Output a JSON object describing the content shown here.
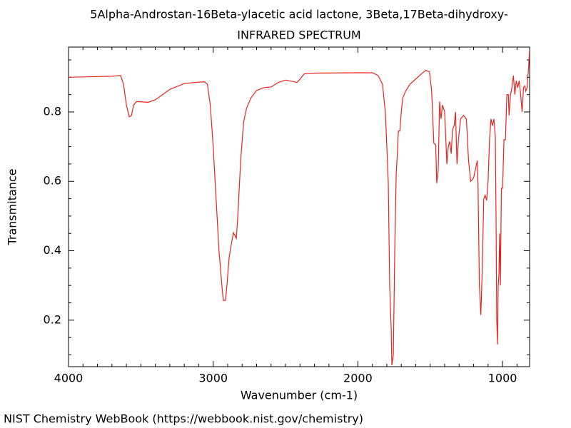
{
  "chart_data": {
    "type": "line",
    "title": "5Alpha-Androstan-16Beta-ylacetic acid lactone, 3Beta,17Beta-dihydroxy-",
    "subtitle": "INFRARED SPECTRUM",
    "x_label": "Wavenumber (cm-1)",
    "y_label": "Transmitance",
    "footer": "NIST Chemistry WebBook (https://webbook.nist.gov/chemistry)",
    "color": "#e8231f",
    "xlim": [
      4000,
      813
    ],
    "ylim": [
      0.066,
      0.987
    ],
    "xticks": [
      4000,
      3000,
      2000,
      1000
    ],
    "yticks": [
      0.2,
      0.4,
      0.6,
      0.8
    ],
    "xminor": [
      3900,
      3800,
      3700,
      3600,
      3500,
      3400,
      3300,
      3200,
      3100,
      2900,
      2800,
      2700,
      2600,
      2500,
      2400,
      2300,
      2200,
      2100,
      1900,
      1800,
      1700,
      1600,
      1500,
      1400,
      1300,
      1200,
      1100,
      900
    ],
    "yminor": [
      0.1,
      0.15,
      0.25,
      0.3,
      0.35,
      0.45,
      0.5,
      0.55,
      0.65,
      0.7,
      0.75,
      0.85,
      0.9,
      0.95
    ],
    "x": [
      4000,
      3700,
      3640,
      3620,
      3600,
      3580,
      3565,
      3550,
      3530,
      3450,
      3400,
      3300,
      3200,
      3100,
      3060,
      3040,
      3020,
      3000,
      2980,
      2960,
      2940,
      2930,
      2915,
      2905,
      2890,
      2870,
      2860,
      2845,
      2840,
      2830,
      2810,
      2790,
      2770,
      2740,
      2700,
      2650,
      2600,
      2550,
      2500,
      2450,
      2420,
      2400,
      2370,
      2300,
      2000,
      1900,
      1860,
      1830,
      1810,
      1790,
      1780,
      1770,
      1765,
      1755,
      1745,
      1735,
      1725,
      1720,
      1710,
      1700,
      1690,
      1670,
      1640,
      1600,
      1560,
      1530,
      1505,
      1490,
      1475,
      1462,
      1455,
      1445,
      1435,
      1425,
      1415,
      1400,
      1385,
      1375,
      1365,
      1355,
      1345,
      1335,
      1325,
      1315,
      1305,
      1290,
      1270,
      1250,
      1235,
      1220,
      1200,
      1185,
      1175,
      1170,
      1160,
      1150,
      1140,
      1130,
      1120,
      1110,
      1100,
      1090,
      1080,
      1070,
      1060,
      1050,
      1045,
      1040,
      1035,
      1030,
      1025,
      1020,
      1015,
      1008,
      1000,
      990,
      980,
      970,
      960,
      955,
      945,
      935,
      925,
      915,
      905,
      895,
      885,
      875,
      865,
      855,
      845,
      840,
      830,
      820,
      813
    ],
    "values": [
      0.9,
      0.903,
      0.905,
      0.88,
      0.82,
      0.786,
      0.79,
      0.82,
      0.83,
      0.828,
      0.835,
      0.865,
      0.882,
      0.886,
      0.887,
      0.88,
      0.82,
      0.7,
      0.55,
      0.4,
      0.3,
      0.257,
      0.257,
      0.3,
      0.38,
      0.43,
      0.452,
      0.44,
      0.436,
      0.5,
      0.66,
      0.77,
      0.81,
      0.84,
      0.862,
      0.87,
      0.872,
      0.885,
      0.892,
      0.888,
      0.885,
      0.895,
      0.91,
      0.912,
      0.913,
      0.913,
      0.905,
      0.88,
      0.8,
      0.6,
      0.3,
      0.18,
      0.07,
      0.1,
      0.4,
      0.62,
      0.7,
      0.745,
      0.745,
      0.8,
      0.84,
      0.86,
      0.88,
      0.895,
      0.91,
      0.92,
      0.915,
      0.86,
      0.71,
      0.705,
      0.595,
      0.63,
      0.83,
      0.78,
      0.82,
      0.8,
      0.65,
      0.7,
      0.715,
      0.68,
      0.75,
      0.76,
      0.8,
      0.65,
      0.72,
      0.78,
      0.79,
      0.78,
      0.66,
      0.6,
      0.61,
      0.64,
      0.66,
      0.6,
      0.3,
      0.215,
      0.35,
      0.55,
      0.56,
      0.545,
      0.6,
      0.72,
      0.78,
      0.76,
      0.78,
      0.73,
      0.5,
      0.2,
      0.13,
      0.3,
      0.33,
      0.45,
      0.3,
      0.58,
      0.58,
      0.72,
      0.72,
      0.85,
      0.85,
      0.79,
      0.85,
      0.87,
      0.905,
      0.85,
      0.89,
      0.87,
      0.89,
      0.85,
      0.8,
      0.87,
      0.875,
      0.86,
      0.87,
      0.93,
      0.98
    ]
  }
}
